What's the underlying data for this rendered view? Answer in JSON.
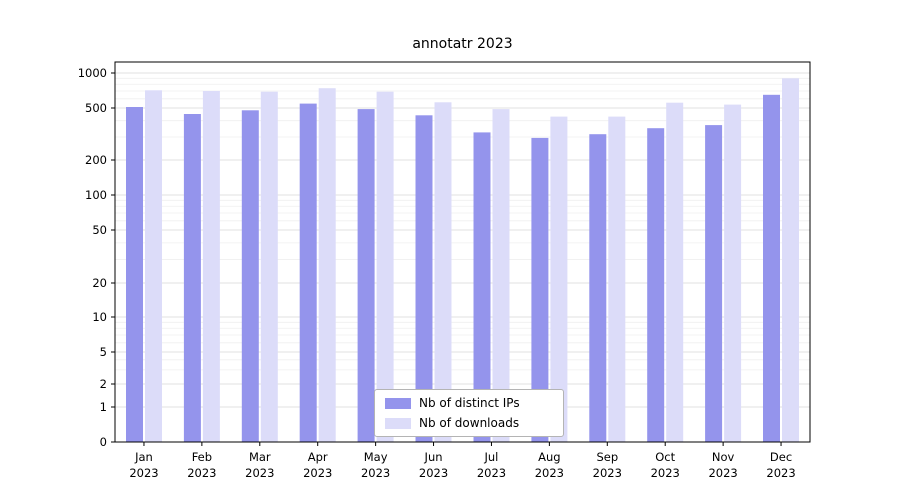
{
  "chart_data": {
    "type": "bar",
    "title": "annotatr 2023",
    "categories": [
      "Jan",
      "Feb",
      "Mar",
      "Apr",
      "May",
      "Jun",
      "Jul",
      "Aug",
      "Sep",
      "Oct",
      "Nov",
      "Dec"
    ],
    "year": "2023",
    "series": [
      {
        "name": "Nb of distinct IPs",
        "color": "#9494ec",
        "values": [
          510,
          450,
          480,
          545,
          490,
          440,
          325,
          295,
          315,
          350,
          370,
          650
        ]
      },
      {
        "name": "Nb of downloads",
        "color": "#dcdcf9",
        "values": [
          710,
          700,
          690,
          740,
          690,
          560,
          490,
          430,
          430,
          555,
          535,
          900
        ]
      }
    ],
    "y_ticks": [
      0,
      1,
      2,
      5,
      10,
      20,
      50,
      100,
      200,
      500,
      1000
    ],
    "y_minor_ticks": [
      3,
      4,
      6,
      7,
      8,
      9,
      30,
      40,
      60,
      70,
      80,
      90,
      300,
      400,
      600,
      700,
      800,
      900
    ],
    "y_scale": "symlog",
    "ylim": [
      0,
      1100
    ],
    "grid": true,
    "legend_position": "bottom-center-inside",
    "colors": {
      "axis": "#000000",
      "grid_major": "#e2e2e2",
      "grid_minor": "#efefef",
      "background": "#ffffff"
    }
  }
}
